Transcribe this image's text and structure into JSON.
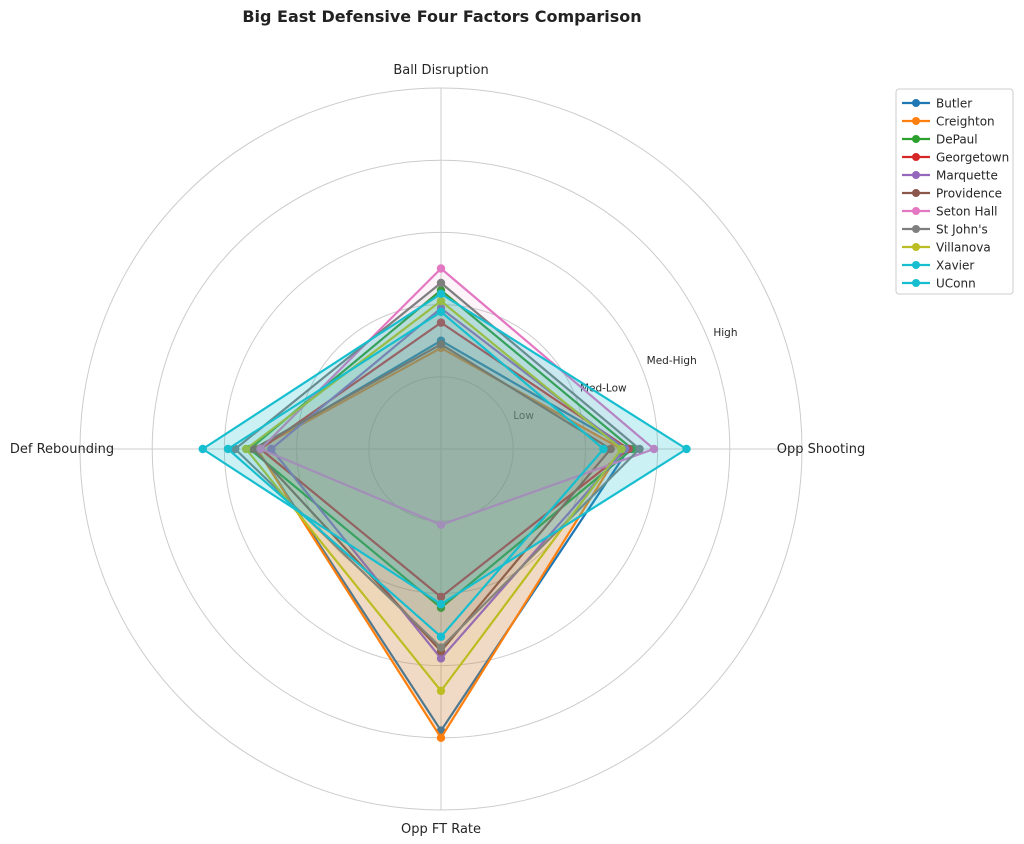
{
  "chart_data": {
    "type": "radar",
    "title": "Big East Defensive Four Factors Comparison",
    "axes": [
      "Ball Disruption",
      "Opp Shooting",
      "Opp FT Rate",
      "Def Rebounding"
    ],
    "ring_labels": [
      "Low",
      "Med-Low",
      "Med-High",
      "High"
    ],
    "rlim": [
      0,
      5
    ],
    "grid": true,
    "legend_position": "top-right",
    "series": [
      {
        "name": "Butler",
        "color": "#1f77b4",
        "values": [
          1.5,
          2.6,
          3.9,
          2.55
        ],
        "fill": false
      },
      {
        "name": "Creighton",
        "color": "#ff7f0e",
        "values": [
          1.4,
          2.5,
          4.0,
          2.55
        ],
        "fill": true
      },
      {
        "name": "DePaul",
        "color": "#2ca02c",
        "values": [
          2.2,
          2.65,
          2.2,
          2.65
        ],
        "fill": false
      },
      {
        "name": "Georgetown",
        "color": "#d62728",
        "values": [
          1.75,
          2.6,
          2.05,
          2.5
        ],
        "fill": false
      },
      {
        "name": "Marquette",
        "color": "#9467bd",
        "values": [
          1.95,
          2.55,
          2.9,
          2.35
        ],
        "fill": false
      },
      {
        "name": "Providence",
        "color": "#8c564b",
        "values": [
          1.45,
          2.35,
          2.8,
          2.6
        ],
        "fill": false
      },
      {
        "name": "Seton Hall",
        "color": "#e377c2",
        "values": [
          2.5,
          2.95,
          1.05,
          2.5
        ],
        "fill": false
      },
      {
        "name": "St John's",
        "color": "#7f7f7f",
        "values": [
          2.3,
          2.75,
          2.75,
          2.85
        ],
        "fill": false
      },
      {
        "name": "Villanova",
        "color": "#bcbd22",
        "values": [
          2.05,
          2.5,
          3.35,
          2.7
        ],
        "fill": false
      },
      {
        "name": "Xavier",
        "color": "#17becf",
        "values": [
          1.9,
          2.25,
          2.6,
          2.95
        ],
        "fill": false
      },
      {
        "name": "UConn",
        "color": "#17becf",
        "values": [
          2.15,
          3.4,
          2.15,
          3.3
        ],
        "fill": true
      }
    ]
  }
}
